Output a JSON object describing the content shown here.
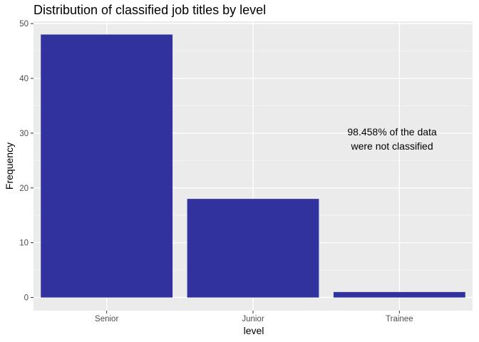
{
  "chart_data": {
    "type": "bar",
    "title": "Distribution of classified job titles by level",
    "xlabel": "level",
    "ylabel": "Frequency",
    "categories": [
      "Senior",
      "Junior",
      "Trainee"
    ],
    "values": [
      48,
      18,
      1
    ],
    "ylim": [
      -2.4,
      50.4
    ],
    "yticks": [
      0,
      10,
      20,
      30,
      40,
      50
    ],
    "grid": true,
    "bar_color": "#2e2e9c",
    "panel_background": "#ebebeb",
    "annotation": {
      "lines": [
        "98.458% of the data",
        "were not classified"
      ],
      "x_category_position": 2.95,
      "y_value": 30
    }
  }
}
